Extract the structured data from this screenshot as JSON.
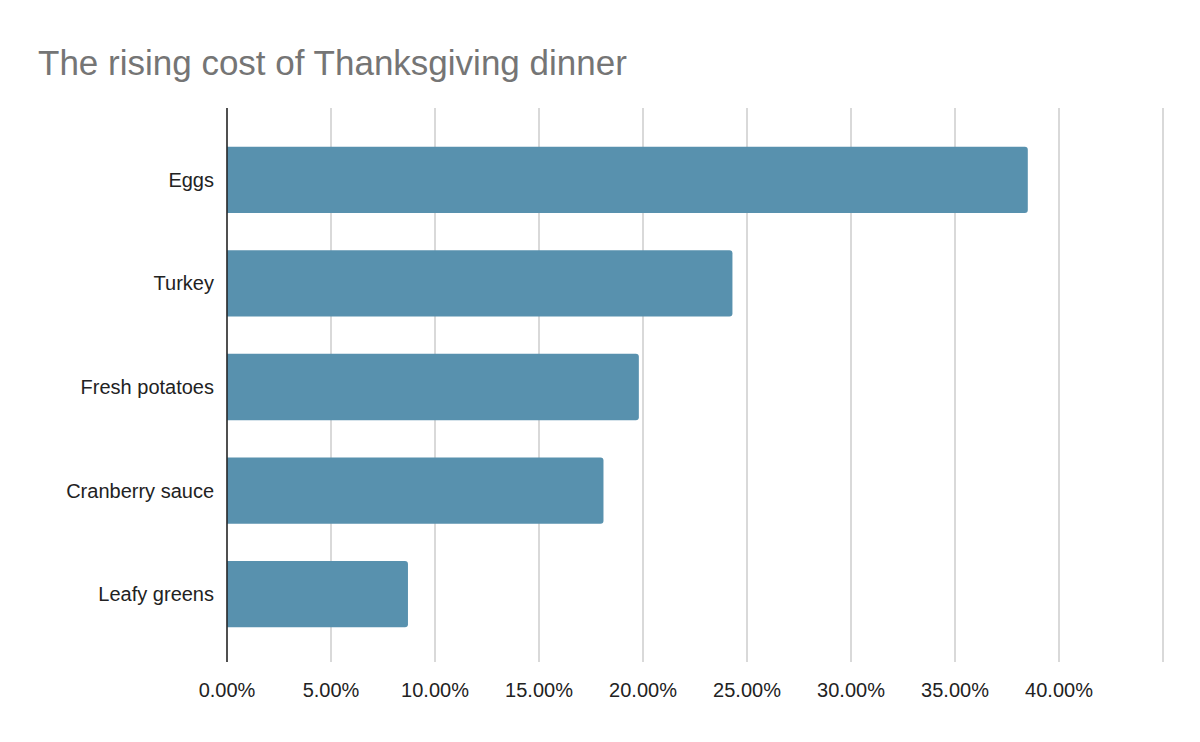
{
  "chart_data": {
    "type": "bar",
    "title": "The rising cost of Thanksgiving dinner",
    "orientation": "horizontal",
    "categories": [
      "Eggs",
      "Turkey",
      "Fresh potatoes",
      "Cranberry sauce",
      "Leafy greens"
    ],
    "values": [
      38.5,
      24.3,
      19.8,
      18.1,
      8.7
    ],
    "color": "#5891ae",
    "xlim": [
      0,
      45
    ],
    "xticks": [
      {
        "value": 0,
        "label": "0.00%"
      },
      {
        "value": 5,
        "label": "5.00%"
      },
      {
        "value": 10,
        "label": "10.00%"
      },
      {
        "value": 15,
        "label": "15.00%"
      },
      {
        "value": 20,
        "label": "20.00%"
      },
      {
        "value": 25,
        "label": "25.00%"
      },
      {
        "value": 30,
        "label": "30.00%"
      },
      {
        "value": 35,
        "label": "35.00%"
      },
      {
        "value": 40,
        "label": "40.00%"
      }
    ],
    "grid": true
  }
}
